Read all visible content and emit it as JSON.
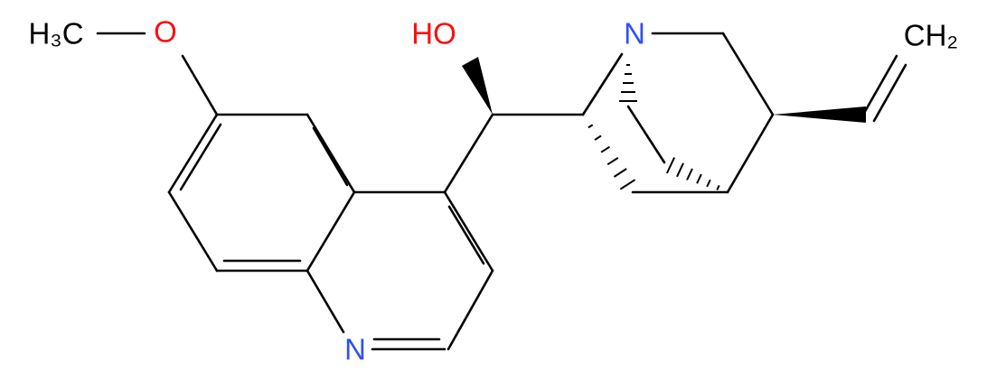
{
  "labels": {
    "methoxy_ch3": "H₃C",
    "methoxy_o": "O",
    "hydroxyl": "HO",
    "quinoline_n": "N",
    "quinuclidine_n": "N",
    "vinyl_ch2": "CH₂"
  }
}
